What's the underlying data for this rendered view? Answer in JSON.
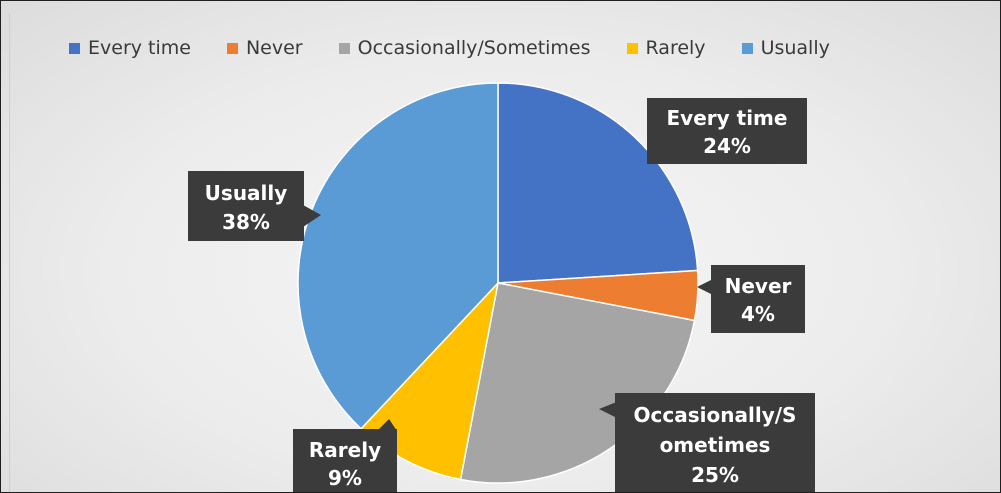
{
  "chart_data": {
    "type": "pie",
    "title": "",
    "slices": [
      {
        "name": "Every time",
        "value": 24,
        "color": "#4472C4",
        "label_line1": "Every time",
        "label_line2": "24%"
      },
      {
        "name": "Never",
        "value": 4,
        "color": "#ED7D31",
        "label_line1": "Never",
        "label_line2": "4%"
      },
      {
        "name": "Occasionally/Sometimes",
        "value": 25,
        "color": "#A5A5A5",
        "label_line1": "Occasionally/S",
        "label_line2": "ometimes",
        "label_line3": "25%"
      },
      {
        "name": "Rarely",
        "value": 9,
        "color": "#FFC000",
        "label_line1": "Rarely",
        "label_line2": "9%"
      },
      {
        "name": "Usually",
        "value": 38,
        "color": "#5B9BD5",
        "label_line1": "Usually",
        "label_line2": "38%"
      }
    ],
    "legend_position": "top"
  }
}
